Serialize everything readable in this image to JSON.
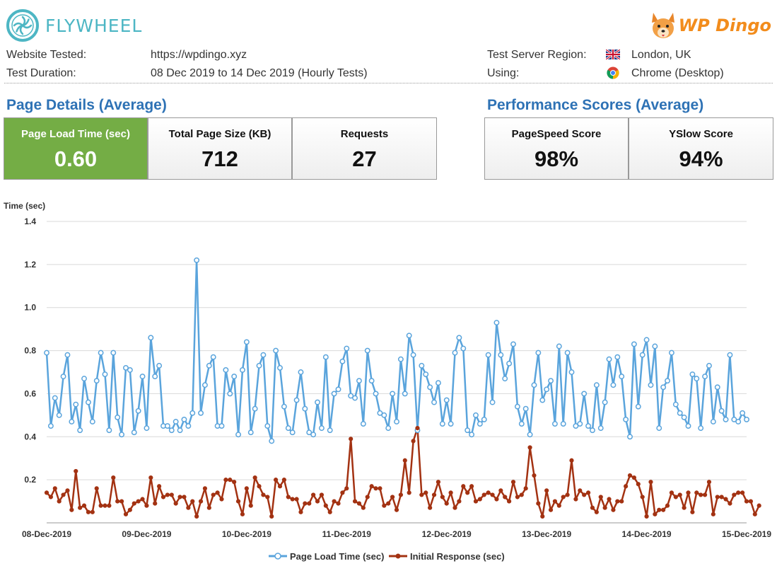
{
  "header": {
    "brand_name": "FLYWHEEL",
    "partner_logo_text": "WP Dingo",
    "website_label": "Website Tested:",
    "website_value": "https://wpdingo.xyz",
    "duration_label": "Test Duration:",
    "duration_value": "08 Dec 2019 to 14 Dec 2019 (Hourly Tests)",
    "region_label": "Test Server Region:",
    "region_value": "London, UK",
    "using_label": "Using:",
    "using_value": "Chrome (Desktop)",
    "region_icon": "uk-flag-icon",
    "using_icon": "chrome-icon"
  },
  "page_details": {
    "title": "Page Details (Average)",
    "cards": [
      {
        "label": "Page Load Time (sec)",
        "value": "0.60"
      },
      {
        "label": "Total Page Size (KB)",
        "value": "712"
      },
      {
        "label": "Requests",
        "value": "27"
      }
    ]
  },
  "performance": {
    "title": "Performance Scores (Average)",
    "cards": [
      {
        "label": "PageSpeed Score",
        "value": "98%"
      },
      {
        "label": "YSlow Score",
        "value": "94%"
      }
    ]
  },
  "colors": {
    "brand": "#4db6c4",
    "section_title": "#2e72b5",
    "highlight_card": "#74ad45",
    "series_load": "#5aa4dc",
    "series_response": "#a33212"
  },
  "chart_data": {
    "type": "line",
    "ylabel": "Time (sec)",
    "xlabel": "",
    "ylim": [
      0,
      1.4
    ],
    "yticks": [
      "1.4",
      "1.2",
      "1.0",
      "0.8",
      "0.6",
      "0.4",
      "0.2"
    ],
    "xlim": [
      "08-Dec-2019",
      "15-Dec-2019"
    ],
    "xticks": [
      "08-Dec-2019",
      "09-Dec-2019",
      "10-Dec-2019",
      "11-Dec-2019",
      "12-Dec-2019",
      "13-Dec-2019",
      "14-Dec-2019",
      "15-Dec-2019"
    ],
    "sample_interval": "hourly",
    "grid": "horizontal",
    "legend_position": "bottom",
    "series": [
      {
        "name": "Page Load Time (sec)",
        "color": "#5aa4dc",
        "values": [
          0.79,
          0.45,
          0.58,
          0.5,
          0.68,
          0.78,
          0.47,
          0.55,
          0.43,
          0.67,
          0.56,
          0.47,
          0.66,
          0.79,
          0.69,
          0.43,
          0.79,
          0.49,
          0.41,
          0.72,
          0.71,
          0.42,
          0.52,
          0.68,
          0.44,
          0.86,
          0.68,
          0.73,
          0.45,
          0.45,
          0.43,
          0.47,
          0.43,
          0.48,
          0.45,
          0.51,
          1.22,
          0.51,
          0.64,
          0.73,
          0.77,
          0.45,
          0.45,
          0.71,
          0.6,
          0.68,
          0.41,
          0.71,
          0.84,
          0.42,
          0.53,
          0.73,
          0.78,
          0.45,
          0.38,
          0.8,
          0.72,
          0.54,
          0.44,
          0.42,
          0.57,
          0.7,
          0.53,
          0.42,
          0.41,
          0.56,
          0.44,
          0.77,
          0.43,
          0.6,
          0.62,
          0.75,
          0.81,
          0.59,
          0.58,
          0.66,
          0.46,
          0.8,
          0.66,
          0.6,
          0.51,
          0.5,
          0.44,
          0.6,
          0.47,
          0.76,
          0.6,
          0.87,
          0.78,
          0.43,
          0.73,
          0.69,
          0.63,
          0.56,
          0.65,
          0.46,
          0.57,
          0.46,
          0.79,
          0.86,
          0.81,
          0.43,
          0.41,
          0.5,
          0.46,
          0.48,
          0.78,
          0.56,
          0.93,
          0.78,
          0.67,
          0.74,
          0.83,
          0.54,
          0.46,
          0.53,
          0.41,
          0.64,
          0.79,
          0.57,
          0.62,
          0.66,
          0.46,
          0.82,
          0.46,
          0.79,
          0.7,
          0.45,
          0.46,
          0.6,
          0.45,
          0.43,
          0.64,
          0.44,
          0.56,
          0.76,
          0.64,
          0.77,
          0.68,
          0.48,
          0.4,
          0.83,
          0.54,
          0.78,
          0.85,
          0.64,
          0.82,
          0.44,
          0.63,
          0.66,
          0.79,
          0.55,
          0.51,
          0.49,
          0.45,
          0.69,
          0.67,
          0.44,
          0.68,
          0.73,
          0.47,
          0.63,
          0.52,
          0.48,
          0.78,
          0.48,
          0.47,
          0.51,
          0.48
        ]
      },
      {
        "name": "Initial Response (sec)",
        "color": "#a33212",
        "values": [
          0.14,
          0.12,
          0.16,
          0.1,
          0.13,
          0.15,
          0.06,
          0.24,
          0.07,
          0.08,
          0.05,
          0.05,
          0.16,
          0.08,
          0.08,
          0.08,
          0.21,
          0.1,
          0.1,
          0.04,
          0.06,
          0.09,
          0.1,
          0.11,
          0.08,
          0.21,
          0.09,
          0.17,
          0.12,
          0.13,
          0.13,
          0.09,
          0.12,
          0.12,
          0.07,
          0.1,
          0.03,
          0.1,
          0.16,
          0.07,
          0.13,
          0.14,
          0.11,
          0.2,
          0.2,
          0.19,
          0.1,
          0.04,
          0.16,
          0.08,
          0.21,
          0.17,
          0.13,
          0.12,
          0.03,
          0.2,
          0.17,
          0.2,
          0.12,
          0.11,
          0.11,
          0.05,
          0.09,
          0.09,
          0.13,
          0.1,
          0.13,
          0.08,
          0.05,
          0.1,
          0.09,
          0.14,
          0.16,
          0.39,
          0.1,
          0.09,
          0.07,
          0.12,
          0.17,
          0.16,
          0.16,
          0.08,
          0.09,
          0.12,
          0.06,
          0.13,
          0.29,
          0.14,
          0.38,
          0.44,
          0.13,
          0.14,
          0.07,
          0.13,
          0.19,
          0.12,
          0.09,
          0.14,
          0.07,
          0.1,
          0.17,
          0.14,
          0.17,
          0.1,
          0.11,
          0.13,
          0.14,
          0.13,
          0.11,
          0.15,
          0.12,
          0.1,
          0.19,
          0.12,
          0.13,
          0.16,
          0.35,
          0.22,
          0.09,
          0.03,
          0.15,
          0.06,
          0.1,
          0.08,
          0.12,
          0.13,
          0.29,
          0.11,
          0.15,
          0.13,
          0.14,
          0.07,
          0.05,
          0.12,
          0.07,
          0.11,
          0.06,
          0.1,
          0.1,
          0.17,
          0.22,
          0.21,
          0.18,
          0.12,
          0.03,
          0.19,
          0.04,
          0.06,
          0.06,
          0.08,
          0.14,
          0.12,
          0.13,
          0.07,
          0.14,
          0.05,
          0.14,
          0.13,
          0.13,
          0.19,
          0.04,
          0.12,
          0.12,
          0.11,
          0.09,
          0.13,
          0.14,
          0.14,
          0.1,
          0.1,
          0.04,
          0.08
        ]
      }
    ]
  }
}
